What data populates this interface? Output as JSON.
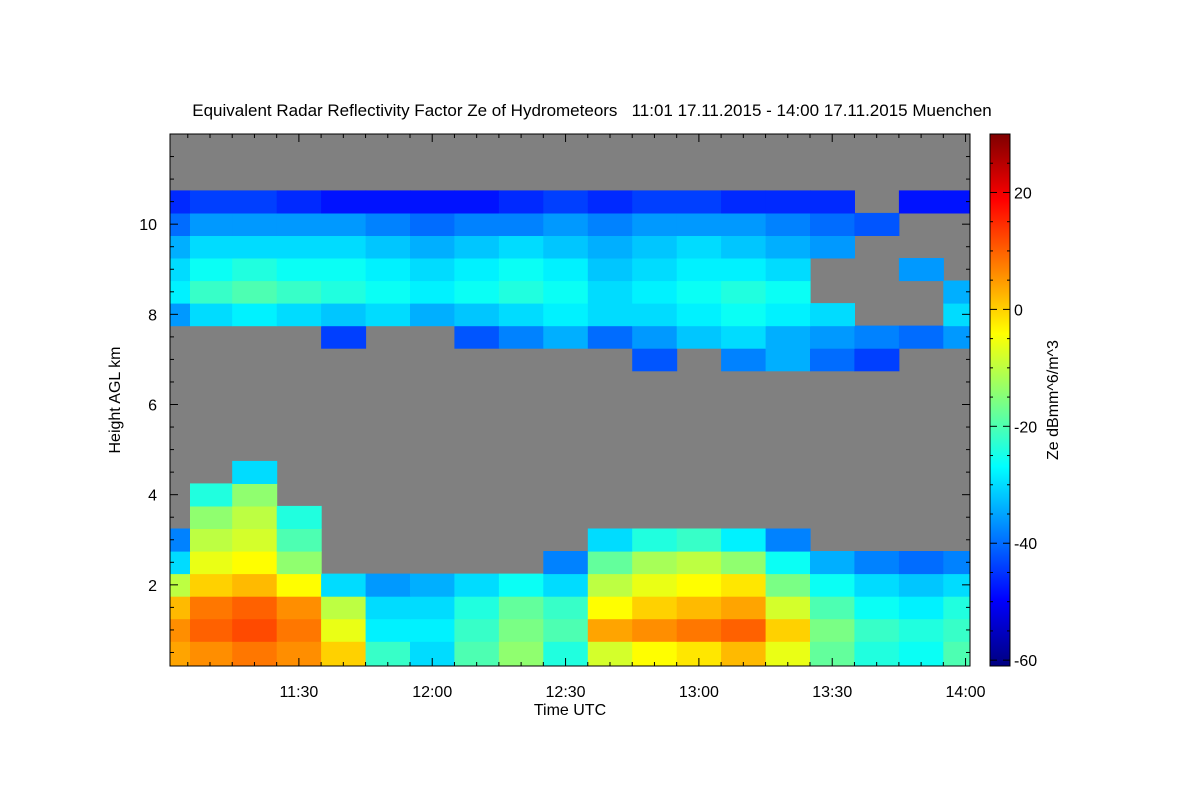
{
  "chart_data": {
    "type": "heatmap",
    "title": "Equivalent Radar Reflectivity Factor Ze of Hydrometeors   11:01 17.11.2015 - 14:00 17.11.2015 Muenchen",
    "xlabel": "Time UTC",
    "ylabel": "Height AGL km",
    "colorbar_label": "Ze dBmm^6/m^3",
    "x_range": [
      "11:01",
      "14:01"
    ],
    "y_range_km": [
      0.2,
      12.0
    ],
    "x_ticks": [
      "11:30",
      "12:00",
      "12:30",
      "13:00",
      "13:30",
      "14:00"
    ],
    "y_ticks": [
      2,
      4,
      6,
      8,
      10
    ],
    "colorbar_range": [
      -61,
      30
    ],
    "colorbar_ticks": [
      20,
      0,
      -20,
      -40,
      -60
    ],
    "colormap": "jet",
    "background_color": "#808080",
    "grid": false,
    "grid_times": [
      "11:01",
      "11:10",
      "11:20",
      "11:30",
      "11:40",
      "11:50",
      "12:00",
      "12:10",
      "12:20",
      "12:30",
      "12:40",
      "12:50",
      "13:00",
      "13:10",
      "13:20",
      "13:30",
      "13:40",
      "13:50",
      "14:00"
    ],
    "grid_heights_km": [
      0.5,
      1.0,
      1.5,
      2.0,
      2.5,
      3.0,
      3.5,
      4.0,
      4.5,
      5.0,
      5.5,
      6.0,
      6.5,
      7.0,
      7.5,
      8.0,
      8.5,
      9.0,
      9.5,
      10.0,
      10.5
    ],
    "ze_dbz": [
      [
        4,
        6,
        8,
        6,
        0,
        -22,
        -30,
        -20,
        -14,
        -24,
        -8,
        -4,
        -2,
        2,
        -6,
        -18,
        -24,
        -26,
        -20
      ],
      [
        6,
        10,
        12,
        8,
        -6,
        -28,
        -28,
        -22,
        -16,
        -20,
        4,
        6,
        8,
        10,
        0,
        -16,
        -22,
        -24,
        -22
      ],
      [
        2,
        8,
        10,
        6,
        -10,
        -30,
        -30,
        -24,
        -18,
        -22,
        -4,
        0,
        2,
        4,
        -8,
        -20,
        -26,
        -28,
        -24
      ],
      [
        -10,
        0,
        2,
        -4,
        -30,
        -36,
        -34,
        -30,
        -26,
        -30,
        -10,
        -6,
        -4,
        -2,
        -16,
        -26,
        -30,
        -32,
        -30
      ],
      [
        -30,
        -6,
        -4,
        -14,
        null,
        null,
        null,
        null,
        null,
        -38,
        -18,
        -12,
        -10,
        -14,
        -26,
        -34,
        -38,
        -40,
        -38
      ],
      [
        -38,
        -10,
        -8,
        -20,
        null,
        null,
        null,
        null,
        null,
        null,
        -30,
        -24,
        -22,
        -28,
        -38,
        null,
        null,
        null,
        null
      ],
      [
        null,
        -14,
        -10,
        -24,
        null,
        null,
        null,
        null,
        null,
        null,
        null,
        null,
        null,
        null,
        null,
        null,
        null,
        null,
        null
      ],
      [
        null,
        -24,
        -14,
        null,
        null,
        null,
        null,
        null,
        null,
        null,
        null,
        null,
        null,
        null,
        null,
        null,
        null,
        null,
        null
      ],
      [
        null,
        null,
        -30,
        null,
        null,
        null,
        null,
        null,
        null,
        null,
        null,
        null,
        null,
        null,
        null,
        null,
        null,
        null,
        null
      ],
      [
        null,
        null,
        null,
        null,
        null,
        null,
        null,
        null,
        null,
        null,
        null,
        null,
        null,
        null,
        null,
        null,
        null,
        null,
        null
      ],
      [
        null,
        null,
        null,
        null,
        null,
        null,
        null,
        null,
        null,
        null,
        null,
        null,
        null,
        null,
        null,
        null,
        null,
        null,
        null
      ],
      [
        null,
        null,
        null,
        null,
        null,
        null,
        null,
        null,
        null,
        null,
        null,
        null,
        null,
        null,
        null,
        null,
        null,
        null,
        null
      ],
      [
        null,
        null,
        null,
        null,
        null,
        null,
        null,
        null,
        null,
        null,
        null,
        null,
        null,
        null,
        null,
        null,
        null,
        null,
        null
      ],
      [
        null,
        null,
        null,
        null,
        null,
        null,
        null,
        null,
        null,
        null,
        null,
        -42,
        null,
        -38,
        -34,
        -40,
        -44,
        null,
        null
      ],
      [
        null,
        null,
        null,
        null,
        -44,
        null,
        null,
        -42,
        -38,
        -34,
        -40,
        -36,
        -32,
        -30,
        -34,
        -36,
        -38,
        -40,
        -36
      ],
      [
        -36,
        -30,
        -28,
        -30,
        -32,
        -30,
        -34,
        -32,
        -30,
        -28,
        -30,
        -30,
        -28,
        -26,
        -28,
        -30,
        null,
        null,
        -30
      ],
      [
        -28,
        -22,
        -20,
        -22,
        -24,
        -26,
        -28,
        -26,
        -24,
        -26,
        -30,
        -28,
        -26,
        -24,
        -26,
        null,
        null,
        null,
        -34
      ],
      [
        -30,
        -26,
        -24,
        -26,
        -26,
        -28,
        -30,
        -28,
        -26,
        -28,
        -32,
        -30,
        -28,
        -28,
        -30,
        null,
        null,
        -36,
        null
      ],
      [
        -34,
        -30,
        -30,
        -30,
        -30,
        -32,
        -34,
        -32,
        -30,
        -32,
        -34,
        -32,
        -30,
        -32,
        -34,
        -36,
        null,
        null,
        null
      ],
      [
        -40,
        -36,
        -36,
        -36,
        -36,
        -38,
        -40,
        -38,
        -38,
        -36,
        -38,
        -36,
        -36,
        -36,
        -38,
        -40,
        -42,
        null,
        null
      ],
      [
        -46,
        -44,
        -44,
        -46,
        -48,
        -48,
        -48,
        -48,
        -46,
        -44,
        -46,
        -44,
        -44,
        -46,
        -46,
        -46,
        null,
        -48,
        -48
      ]
    ]
  }
}
